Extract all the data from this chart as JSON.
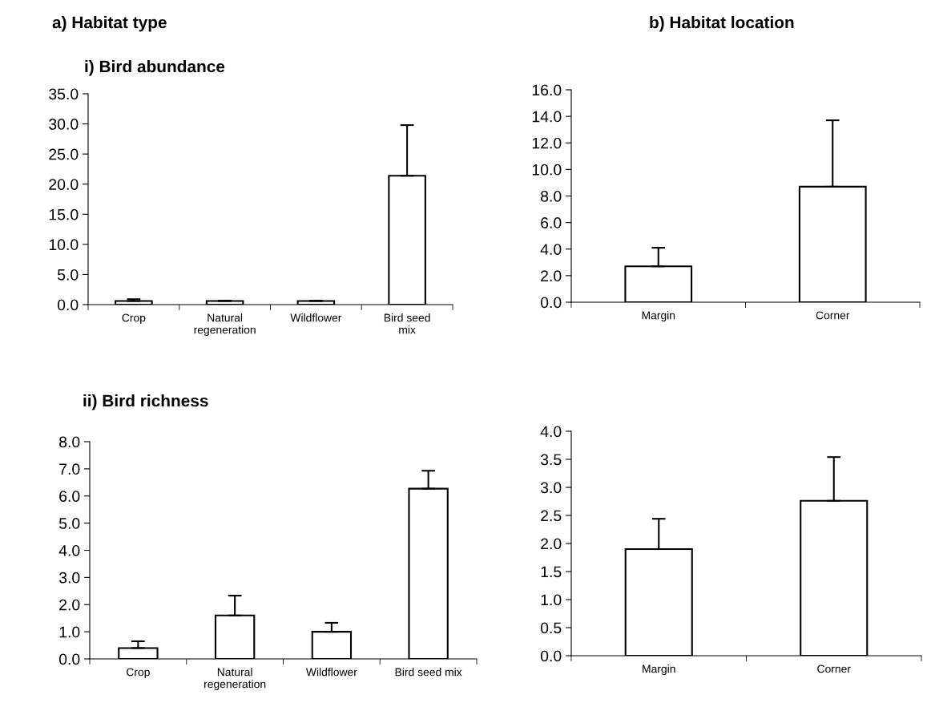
{
  "chart_data": [
    {
      "type": "bar",
      "title": "a) Habitat type",
      "subtitle": "i) Bird abundance",
      "categories": [
        "Crop",
        "Natural\nregeneration",
        "Wildflower",
        "Bird seed\nmix"
      ],
      "values": [
        0.6,
        0.6,
        0.6,
        21.4
      ],
      "errors": [
        [
          0.6,
          0.9
        ],
        [
          0.6,
          0.65
        ],
        [
          0.6,
          0.65
        ],
        [
          21.4,
          29.8
        ]
      ],
      "color": "#ffffff",
      "ylim": [
        0,
        35
      ],
      "yticks": [
        {
          "value": 0,
          "label": "0.0"
        },
        {
          "value": 5,
          "label": "5.0"
        },
        {
          "value": 10,
          "label": "10.0"
        },
        {
          "value": 15,
          "label": "15.0"
        },
        {
          "value": 20,
          "label": "20.0"
        },
        {
          "value": 25,
          "label": "25.0"
        },
        {
          "value": 30,
          "label": "30.0"
        },
        {
          "value": 35,
          "label": "35.0"
        }
      ]
    },
    {
      "type": "bar",
      "title": "b) Habitat location",
      "categories": [
        "Margin",
        "Corner"
      ],
      "values": [
        2.7,
        8.7
      ],
      "errors": [
        [
          2.7,
          4.1
        ],
        [
          8.7,
          13.7
        ]
      ],
      "color": "#ffffff",
      "ylim": [
        0,
        16
      ],
      "yticks": [
        {
          "value": 0,
          "label": "0.0"
        },
        {
          "value": 2,
          "label": "2.0"
        },
        {
          "value": 4,
          "label": "4.0"
        },
        {
          "value": 6,
          "label": "6.0"
        },
        {
          "value": 8,
          "label": "8.0"
        },
        {
          "value": 10,
          "label": "10.0"
        },
        {
          "value": 12,
          "label": "12.0"
        },
        {
          "value": 14,
          "label": "14.0"
        },
        {
          "value": 16,
          "label": "16.0"
        }
      ]
    },
    {
      "type": "bar",
      "title": "ii) Bird richness",
      "categories": [
        "Crop",
        "Natural\nregeneration",
        "Wildflower",
        "Bird seed mix"
      ],
      "values": [
        0.4,
        1.6,
        1.0,
        6.27
      ],
      "errors": [
        [
          0.4,
          0.65
        ],
        [
          1.6,
          2.33
        ],
        [
          1.0,
          1.33
        ],
        [
          6.27,
          6.93
        ]
      ],
      "color": "#ffffff",
      "ylim": [
        0,
        8
      ],
      "yticks": [
        {
          "value": 0,
          "label": "0.0"
        },
        {
          "value": 1,
          "label": "1.0"
        },
        {
          "value": 2,
          "label": "2.0"
        },
        {
          "value": 3,
          "label": "3.0"
        },
        {
          "value": 4,
          "label": "4.0"
        },
        {
          "value": 5,
          "label": "5.0"
        },
        {
          "value": 6,
          "label": "6.0"
        },
        {
          "value": 7,
          "label": "7.0"
        },
        {
          "value": 8,
          "label": "8.0"
        }
      ]
    },
    {
      "type": "bar",
      "categories": [
        "Margin",
        "Corner"
      ],
      "values": [
        1.9,
        2.76
      ],
      "errors": [
        [
          1.9,
          2.44
        ],
        [
          2.76,
          3.54
        ]
      ],
      "color": "#ffffff",
      "ylim": [
        0,
        4
      ],
      "yticks": [
        {
          "value": 0,
          "label": "0.0"
        },
        {
          "value": 0.5,
          "label": "0.5"
        },
        {
          "value": 1,
          "label": "1.0"
        },
        {
          "value": 1.5,
          "label": "1.5"
        },
        {
          "value": 2,
          "label": "2.0"
        },
        {
          "value": 2.5,
          "label": "2.5"
        },
        {
          "value": 3,
          "label": "3.0"
        },
        {
          "value": 3.5,
          "label": "3.5"
        },
        {
          "value": 4,
          "label": "4.0"
        }
      ]
    }
  ]
}
